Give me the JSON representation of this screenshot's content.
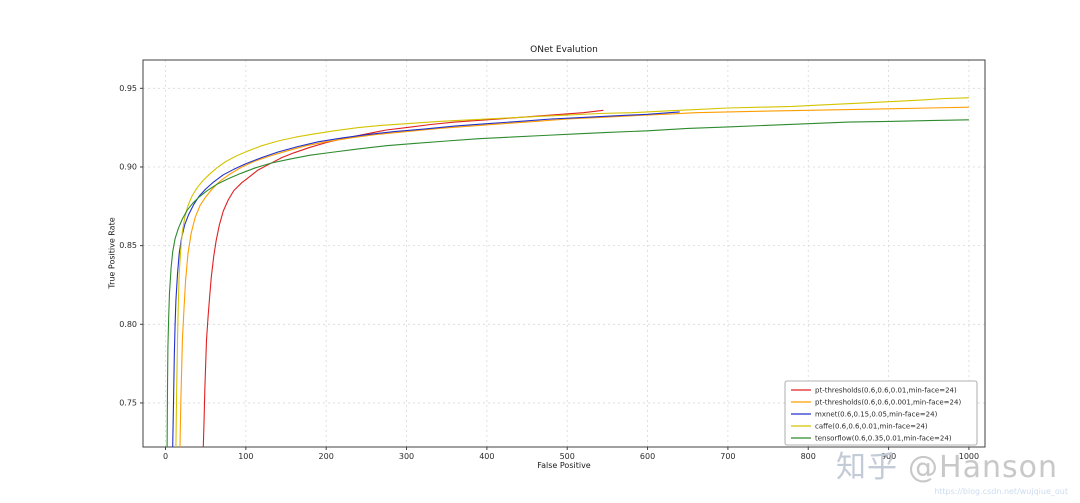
{
  "watermark": {
    "brand": "知乎",
    "handle": "@Hanson",
    "url": "https://blog.csdn.net/wujqiue_out"
  },
  "chart_data": {
    "type": "line",
    "title": "ONet Evalution",
    "xlabel": "False Positive",
    "ylabel": "True Positive Rate",
    "xlim": [
      -28,
      1020
    ],
    "ylim": [
      0.722,
      0.968
    ],
    "xticks": [
      0,
      100,
      200,
      300,
      400,
      500,
      600,
      700,
      800,
      900,
      1000
    ],
    "yticks": [
      0.75,
      0.8,
      0.85,
      0.9,
      0.95
    ],
    "grid": "dashed",
    "legend_position": "lower right",
    "series": [
      {
        "name": "pt-thresholds(0.6,0.6,0.01,min-face=24)",
        "color": "#e02020",
        "points": [
          [
            47,
            0.722
          ],
          [
            48,
            0.74
          ],
          [
            49,
            0.76
          ],
          [
            50,
            0.775
          ],
          [
            51,
            0.79
          ],
          [
            53,
            0.805
          ],
          [
            55,
            0.818
          ],
          [
            57,
            0.83
          ],
          [
            60,
            0.843
          ],
          [
            63,
            0.853
          ],
          [
            67,
            0.863
          ],
          [
            72,
            0.872
          ],
          [
            78,
            0.879
          ],
          [
            85,
            0.885
          ],
          [
            95,
            0.89
          ],
          [
            105,
            0.894
          ],
          [
            115,
            0.898
          ],
          [
            130,
            0.902
          ],
          [
            145,
            0.906
          ],
          [
            160,
            0.909
          ],
          [
            180,
            0.9125
          ],
          [
            200,
            0.9155
          ],
          [
            225,
            0.9185
          ],
          [
            250,
            0.921
          ],
          [
            275,
            0.9235
          ],
          [
            300,
            0.925
          ],
          [
            330,
            0.927
          ],
          [
            360,
            0.9285
          ],
          [
            400,
            0.93
          ],
          [
            440,
            0.9315
          ],
          [
            480,
            0.933
          ],
          [
            520,
            0.9345
          ],
          [
            545,
            0.936
          ]
        ]
      },
      {
        "name": "pt-thresholds(0.6,0.6,0.001,min-face=24)",
        "color": "#ff9d00",
        "points": [
          [
            18,
            0.722
          ],
          [
            19,
            0.75
          ],
          [
            20,
            0.77
          ],
          [
            21,
            0.79
          ],
          [
            23,
            0.81
          ],
          [
            25,
            0.828
          ],
          [
            28,
            0.845
          ],
          [
            32,
            0.858
          ],
          [
            37,
            0.868
          ],
          [
            43,
            0.8755
          ],
          [
            50,
            0.881
          ],
          [
            58,
            0.886
          ],
          [
            68,
            0.891
          ],
          [
            80,
            0.8955
          ],
          [
            95,
            0.9
          ],
          [
            110,
            0.9035
          ],
          [
            130,
            0.907
          ],
          [
            150,
            0.91
          ],
          [
            175,
            0.9135
          ],
          [
            200,
            0.916
          ],
          [
            230,
            0.9185
          ],
          [
            260,
            0.9205
          ],
          [
            300,
            0.9225
          ],
          [
            340,
            0.9245
          ],
          [
            380,
            0.926
          ],
          [
            420,
            0.9275
          ],
          [
            460,
            0.929
          ],
          [
            500,
            0.9305
          ],
          [
            540,
            0.9315
          ],
          [
            580,
            0.9325
          ],
          [
            620,
            0.9335
          ],
          [
            660,
            0.9345
          ],
          [
            700,
            0.935
          ],
          [
            750,
            0.9355
          ],
          [
            800,
            0.936
          ],
          [
            850,
            0.9365
          ],
          [
            900,
            0.937
          ],
          [
            950,
            0.9375
          ],
          [
            1000,
            0.938
          ]
        ]
      },
      {
        "name": "mxnet(0.6,0.15,0.05,min-face=24)",
        "color": "#2230cc",
        "points": [
          [
            9,
            0.722
          ],
          [
            10,
            0.75
          ],
          [
            11,
            0.78
          ],
          [
            12,
            0.8
          ],
          [
            13,
            0.815
          ],
          [
            15,
            0.832
          ],
          [
            17,
            0.845
          ],
          [
            20,
            0.855
          ],
          [
            24,
            0.8635
          ],
          [
            29,
            0.87
          ],
          [
            35,
            0.876
          ],
          [
            42,
            0.8815
          ],
          [
            50,
            0.886
          ],
          [
            60,
            0.8905
          ],
          [
            72,
            0.895
          ],
          [
            85,
            0.8985
          ],
          [
            100,
            0.902
          ],
          [
            120,
            0.906
          ],
          [
            140,
            0.9095
          ],
          [
            165,
            0.913
          ],
          [
            190,
            0.916
          ],
          [
            220,
            0.9185
          ],
          [
            250,
            0.9205
          ],
          [
            285,
            0.9225
          ],
          [
            320,
            0.924
          ],
          [
            360,
            0.926
          ],
          [
            400,
            0.9275
          ],
          [
            440,
            0.929
          ],
          [
            480,
            0.9305
          ],
          [
            520,
            0.9315
          ],
          [
            560,
            0.9325
          ],
          [
            600,
            0.9335
          ],
          [
            640,
            0.935
          ]
        ]
      },
      {
        "name": "caffe(0.6,0.6,0.01,min-face=24)",
        "color": "#d4c400",
        "points": [
          [
            13,
            0.722
          ],
          [
            14,
            0.76
          ],
          [
            15,
            0.79
          ],
          [
            16,
            0.815
          ],
          [
            17,
            0.832
          ],
          [
            19,
            0.848
          ],
          [
            21,
            0.859
          ],
          [
            24,
            0.868
          ],
          [
            28,
            0.8755
          ],
          [
            33,
            0.8815
          ],
          [
            39,
            0.8865
          ],
          [
            46,
            0.891
          ],
          [
            54,
            0.895
          ],
          [
            64,
            0.8995
          ],
          [
            75,
            0.9035
          ],
          [
            88,
            0.907
          ],
          [
            102,
            0.91
          ],
          [
            120,
            0.9135
          ],
          [
            140,
            0.9165
          ],
          [
            162,
            0.919
          ],
          [
            185,
            0.921
          ],
          [
            210,
            0.923
          ],
          [
            240,
            0.925
          ],
          [
            270,
            0.9265
          ],
          [
            300,
            0.9275
          ],
          [
            340,
            0.929
          ],
          [
            380,
            0.93
          ],
          [
            420,
            0.931
          ],
          [
            460,
            0.932
          ],
          [
            500,
            0.933
          ],
          [
            540,
            0.934
          ],
          [
            580,
            0.9345
          ],
          [
            620,
            0.9355
          ],
          [
            660,
            0.9365
          ],
          [
            700,
            0.9375
          ],
          [
            740,
            0.938
          ],
          [
            780,
            0.9385
          ],
          [
            820,
            0.9395
          ],
          [
            860,
            0.9405
          ],
          [
            900,
            0.9415
          ],
          [
            940,
            0.9425
          ],
          [
            970,
            0.9435
          ],
          [
            1000,
            0.944
          ]
        ]
      },
      {
        "name": "tensorflow(0.6,0.35,0.01,min-face=24)",
        "color": "#2e8b2e",
        "points": [
          [
            2,
            0.722
          ],
          [
            2.5,
            0.76
          ],
          [
            3,
            0.785
          ],
          [
            4,
            0.805
          ],
          [
            5,
            0.82
          ],
          [
            7,
            0.836
          ],
          [
            9,
            0.846
          ],
          [
            12,
            0.8545
          ],
          [
            16,
            0.861
          ],
          [
            21,
            0.867
          ],
          [
            27,
            0.8725
          ],
          [
            34,
            0.877
          ],
          [
            42,
            0.881
          ],
          [
            52,
            0.885
          ],
          [
            64,
            0.889
          ],
          [
            78,
            0.8925
          ],
          [
            94,
            0.896
          ],
          [
            112,
            0.8995
          ],
          [
            132,
            0.9025
          ],
          [
            155,
            0.905
          ],
          [
            180,
            0.9075
          ],
          [
            210,
            0.9095
          ],
          [
            240,
            0.9115
          ],
          [
            275,
            0.9135
          ],
          [
            310,
            0.915
          ],
          [
            350,
            0.9165
          ],
          [
            390,
            0.918
          ],
          [
            430,
            0.919
          ],
          [
            470,
            0.92
          ],
          [
            510,
            0.921
          ],
          [
            550,
            0.922
          ],
          [
            600,
            0.923
          ],
          [
            650,
            0.9245
          ],
          [
            700,
            0.9255
          ],
          [
            750,
            0.9265
          ],
          [
            800,
            0.9275
          ],
          [
            850,
            0.9285
          ],
          [
            900,
            0.929
          ],
          [
            950,
            0.9295
          ],
          [
            1000,
            0.93
          ]
        ]
      }
    ]
  }
}
